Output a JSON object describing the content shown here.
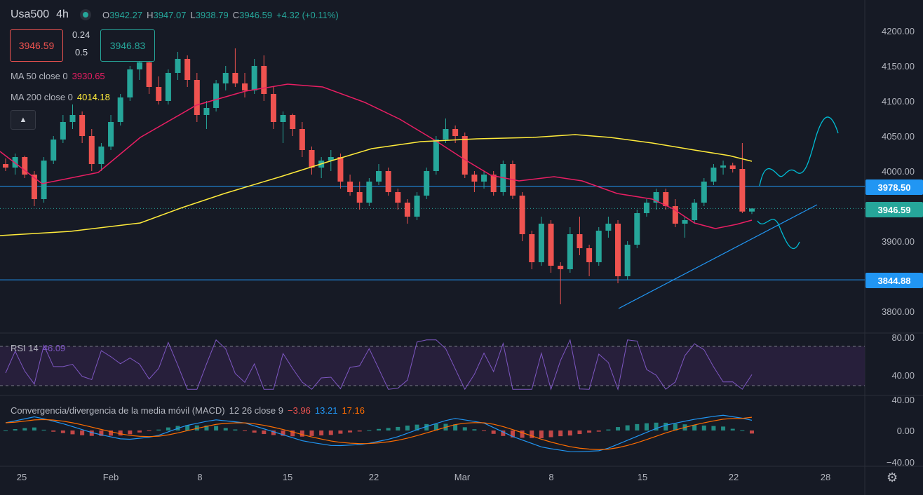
{
  "header": {
    "symbol": "Usa500",
    "interval": "4h",
    "open_label": "O",
    "open": "3942.27",
    "high_label": "H",
    "high": "3947.07",
    "low_label": "L",
    "low": "3938.79",
    "close_label": "C",
    "close": "3946.59",
    "change": "+4.32 (+0.11%)",
    "sell_price": "3946.59",
    "spread_top": "0.24",
    "spread_bottom": "0.5",
    "buy_price": "3946.83",
    "collapse_icon": "chevron-up-icon"
  },
  "indicators": {
    "ma50": {
      "label": "MA 50 close 0",
      "value": "3930.65",
      "color": "#e91e63"
    },
    "ma200": {
      "label": "MA 200 close 0",
      "value": "4014.18",
      "color": "#ffeb3b"
    },
    "rsi": {
      "label": "RSI 14",
      "value": "46.09",
      "color": "#7e57c2"
    },
    "macd": {
      "label": "Convergencia/divergencia de la media móvil (MACD)",
      "params": "12 26 close 9",
      "hist": "−3.96",
      "hist_color": "#ef5350",
      "macd": "13.21",
      "macd_color": "#2196f3",
      "signal": "17.16",
      "signal_color": "#ff6d00"
    }
  },
  "price_axis": [
    "4200.00",
    "4150.00",
    "4100.00",
    "4050.00",
    "4000.00",
    "3900.00",
    "3800.00"
  ],
  "price_tags": [
    {
      "value": "3978.50",
      "color": "#2196f3"
    },
    {
      "value": "3946.59",
      "color": "#26a69a"
    },
    {
      "value": "3844.88",
      "color": "#2196f3"
    }
  ],
  "rsi_axis": [
    "80.00",
    "40.00"
  ],
  "macd_axis": [
    "40.00",
    "0.00",
    "−40.00"
  ],
  "time_axis": [
    "25",
    "Feb",
    "8",
    "15",
    "22",
    "Mar",
    "8",
    "15",
    "22",
    "28"
  ],
  "settings_icon": "gear-icon",
  "colors": {
    "background": "#161a25",
    "up": "#26a69a",
    "down": "#ef5350",
    "line": "#2196f3"
  },
  "chart_data": {
    "type": "candlestick",
    "timeframe": "4h",
    "price_range": [
      3780,
      4225
    ],
    "horizontal_levels": [
      3978.5,
      3844.88
    ],
    "last_price": 3946.59,
    "candles": [
      [
        4010,
        4018,
        4000,
        4005
      ],
      [
        4005,
        4025,
        3995,
        4020
      ],
      [
        4020,
        4022,
        3990,
        3995
      ],
      [
        3995,
        4000,
        3950,
        3960
      ],
      [
        3960,
        4020,
        3955,
        4015
      ],
      [
        4015,
        4050,
        4010,
        4045
      ],
      [
        4045,
        4080,
        4040,
        4070
      ],
      [
        4070,
        4095,
        4060,
        4080
      ],
      [
        4080,
        4085,
        4040,
        4050
      ],
      [
        4050,
        4060,
        4000,
        4010
      ],
      [
        4010,
        4040,
        4000,
        4035
      ],
      [
        4035,
        4080,
        4030,
        4070
      ],
      [
        4070,
        4110,
        4065,
        4105
      ],
      [
        4105,
        4150,
        4100,
        4145
      ],
      [
        4145,
        4165,
        4130,
        4155
      ],
      [
        4155,
        4160,
        4110,
        4120
      ],
      [
        4120,
        4135,
        4095,
        4100
      ],
      [
        4100,
        4145,
        4095,
        4140
      ],
      [
        4140,
        4170,
        4130,
        4160
      ],
      [
        4160,
        4165,
        4120,
        4130
      ],
      [
        4130,
        4140,
        4070,
        4080
      ],
      [
        4080,
        4100,
        4060,
        4090
      ],
      [
        4090,
        4130,
        4085,
        4125
      ],
      [
        4125,
        4150,
        4115,
        4140
      ],
      [
        4140,
        4175,
        4120,
        4125
      ],
      [
        4125,
        4140,
        4105,
        4115
      ],
      [
        4115,
        4160,
        4110,
        4150
      ],
      [
        4150,
        4165,
        4100,
        4110
      ],
      [
        4110,
        4120,
        4060,
        4070
      ],
      [
        4070,
        4085,
        4040,
        4080
      ],
      [
        4080,
        4082,
        4050,
        4060
      ],
      [
        4060,
        4070,
        4020,
        4030
      ],
      [
        4030,
        4035,
        3995,
        4005
      ],
      [
        4005,
        4020,
        3990,
        4015
      ],
      [
        4015,
        4030,
        4000,
        4020
      ],
      [
        4020,
        4025,
        3975,
        3985
      ],
      [
        3985,
        3995,
        3965,
        3970
      ],
      [
        3970,
        3985,
        3945,
        3955
      ],
      [
        3955,
        3990,
        3950,
        3985
      ],
      [
        3985,
        4010,
        3980,
        4000
      ],
      [
        4000,
        4005,
        3965,
        3970
      ],
      [
        3970,
        3975,
        3945,
        3955
      ],
      [
        3955,
        3960,
        3925,
        3935
      ],
      [
        3935,
        3970,
        3930,
        3965
      ],
      [
        3965,
        4005,
        3960,
        4000
      ],
      [
        4000,
        4050,
        3995,
        4045
      ],
      [
        4045,
        4075,
        4040,
        4060
      ],
      [
        4060,
        4065,
        4040,
        4050
      ],
      [
        4050,
        4055,
        3990,
        3995
      ],
      [
        3995,
        4000,
        3970,
        3985
      ],
      [
        3985,
        4000,
        3975,
        3995
      ],
      [
        3995,
        4000,
        3965,
        3970
      ],
      [
        3970,
        4015,
        3965,
        4010
      ],
      [
        4010,
        4015,
        3960,
        3965
      ],
      [
        3965,
        3970,
        3900,
        3910
      ],
      [
        3910,
        3915,
        3860,
        3870
      ],
      [
        3870,
        3935,
        3865,
        3925
      ],
      [
        3925,
        3930,
        3855,
        3865
      ],
      [
        3865,
        3870,
        3810,
        3860
      ],
      [
        3860,
        3920,
        3855,
        3910
      ],
      [
        3910,
        3935,
        3880,
        3890
      ],
      [
        3890,
        3895,
        3850,
        3870
      ],
      [
        3870,
        3920,
        3865,
        3915
      ],
      [
        3915,
        3935,
        3905,
        3925
      ],
      [
        3925,
        3930,
        3840,
        3850
      ],
      [
        3850,
        3900,
        3845,
        3895
      ],
      [
        3895,
        3945,
        3890,
        3940
      ],
      [
        3940,
        3960,
        3935,
        3955
      ],
      [
        3955,
        3975,
        3945,
        3970
      ],
      [
        3970,
        3975,
        3945,
        3950
      ],
      [
        3950,
        3960,
        3920,
        3925
      ],
      [
        3925,
        3935,
        3905,
        3930
      ],
      [
        3930,
        3960,
        3925,
        3955
      ],
      [
        3955,
        3990,
        3950,
        3985
      ],
      [
        3985,
        4010,
        3980,
        4005
      ],
      [
        4005,
        4015,
        3995,
        4008
      ],
      [
        4008,
        4012,
        3998,
        4003
      ],
      [
        4003,
        4040,
        3940,
        3942.27
      ],
      [
        3942.27,
        3947.07,
        3938.79,
        3946.59
      ]
    ],
    "ma50": {
      "from": 4016,
      "to": 3930.65
    },
    "ma200": {
      "from": 3908,
      "to": 4014.18
    },
    "rsi": {
      "range": [
        30,
        85
      ],
      "last": 46.09
    },
    "macd": {
      "range": [
        -45,
        45
      ],
      "hist": -3.96,
      "macd": 13.21,
      "signal": 17.16
    },
    "annotations": [
      "trendline",
      "projection-up",
      "projection-down"
    ]
  }
}
